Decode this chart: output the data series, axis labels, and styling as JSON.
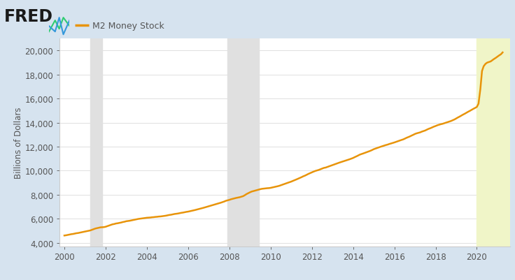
{
  "title": "M2 Money Stock",
  "ylabel": "Billions of Dollars",
  "line_color": "#e8940a",
  "background_color": "#d6e3ef",
  "plot_bg_color": "#ffffff",
  "recession_color": "#e0e0e0",
  "highlight_color": "#f0f5c8",
  "ylim": [
    3700,
    21000
  ],
  "yticks": [
    4000,
    6000,
    8000,
    10000,
    12000,
    14000,
    16000,
    18000,
    20000
  ],
  "xlim_start": 1999.75,
  "xlim_end": 2021.6,
  "xticks": [
    2000,
    2002,
    2004,
    2006,
    2008,
    2010,
    2012,
    2014,
    2016,
    2018,
    2020
  ],
  "recessions": [
    {
      "start": 2001.25,
      "end": 2001.83
    },
    {
      "start": 2007.92,
      "end": 2009.42
    }
  ],
  "highlight_start": 2020.0,
  "highlight_end": 2021.6,
  "fred_text": "FRED",
  "legend_label": "M2 Money Stock",
  "data": {
    "years": [
      2000.0,
      2000.08,
      2000.17,
      2000.25,
      2000.33,
      2000.42,
      2000.5,
      2000.58,
      2000.67,
      2000.75,
      2000.83,
      2000.92,
      2001.0,
      2001.08,
      2001.17,
      2001.25,
      2001.33,
      2001.42,
      2001.5,
      2001.58,
      2001.67,
      2001.75,
      2001.83,
      2001.92,
      2002.0,
      2002.08,
      2002.17,
      2002.25,
      2002.33,
      2002.42,
      2002.5,
      2002.58,
      2002.67,
      2002.75,
      2002.83,
      2002.92,
      2003.0,
      2003.08,
      2003.17,
      2003.25,
      2003.33,
      2003.42,
      2003.5,
      2003.58,
      2003.67,
      2003.75,
      2003.83,
      2003.92,
      2004.0,
      2004.08,
      2004.17,
      2004.25,
      2004.33,
      2004.42,
      2004.5,
      2004.58,
      2004.67,
      2004.75,
      2004.83,
      2004.92,
      2005.0,
      2005.08,
      2005.17,
      2005.25,
      2005.33,
      2005.42,
      2005.5,
      2005.58,
      2005.67,
      2005.75,
      2005.83,
      2005.92,
      2006.0,
      2006.08,
      2006.17,
      2006.25,
      2006.33,
      2006.42,
      2006.5,
      2006.58,
      2006.67,
      2006.75,
      2006.83,
      2006.92,
      2007.0,
      2007.08,
      2007.17,
      2007.25,
      2007.33,
      2007.42,
      2007.5,
      2007.58,
      2007.67,
      2007.75,
      2007.83,
      2007.92,
      2008.0,
      2008.08,
      2008.17,
      2008.25,
      2008.33,
      2008.42,
      2008.5,
      2008.58,
      2008.67,
      2008.75,
      2008.83,
      2008.92,
      2009.0,
      2009.08,
      2009.17,
      2009.25,
      2009.33,
      2009.42,
      2009.5,
      2009.58,
      2009.67,
      2009.75,
      2009.83,
      2009.92,
      2010.0,
      2010.08,
      2010.17,
      2010.25,
      2010.33,
      2010.42,
      2010.5,
      2010.58,
      2010.67,
      2010.75,
      2010.83,
      2010.92,
      2011.0,
      2011.08,
      2011.17,
      2011.25,
      2011.33,
      2011.42,
      2011.5,
      2011.58,
      2011.67,
      2011.75,
      2011.83,
      2011.92,
      2012.0,
      2012.08,
      2012.17,
      2012.25,
      2012.33,
      2012.42,
      2012.5,
      2012.58,
      2012.67,
      2012.75,
      2012.83,
      2012.92,
      2013.0,
      2013.08,
      2013.17,
      2013.25,
      2013.33,
      2013.42,
      2013.5,
      2013.58,
      2013.67,
      2013.75,
      2013.83,
      2013.92,
      2014.0,
      2014.08,
      2014.17,
      2014.25,
      2014.33,
      2014.42,
      2014.5,
      2014.58,
      2014.67,
      2014.75,
      2014.83,
      2014.92,
      2015.0,
      2015.08,
      2015.17,
      2015.25,
      2015.33,
      2015.42,
      2015.5,
      2015.58,
      2015.67,
      2015.75,
      2015.83,
      2015.92,
      2016.0,
      2016.08,
      2016.17,
      2016.25,
      2016.33,
      2016.42,
      2016.5,
      2016.58,
      2016.67,
      2016.75,
      2016.83,
      2016.92,
      2017.0,
      2017.08,
      2017.17,
      2017.25,
      2017.33,
      2017.42,
      2017.5,
      2017.58,
      2017.67,
      2017.75,
      2017.83,
      2017.92,
      2018.0,
      2018.08,
      2018.17,
      2018.25,
      2018.33,
      2018.42,
      2018.5,
      2018.58,
      2018.67,
      2018.75,
      2018.83,
      2018.92,
      2019.0,
      2019.08,
      2019.17,
      2019.25,
      2019.33,
      2019.42,
      2019.5,
      2019.58,
      2019.67,
      2019.75,
      2019.83,
      2019.92,
      2020.0,
      2020.08,
      2020.17,
      2020.25,
      2020.33,
      2020.42,
      2020.5,
      2020.58,
      2020.67,
      2020.75,
      2020.83,
      2020.92,
      2021.0,
      2021.08,
      2021.17,
      2021.25
    ],
    "values": [
      4600,
      4620,
      4650,
      4680,
      4710,
      4730,
      4760,
      4790,
      4810,
      4840,
      4870,
      4900,
      4930,
      4960,
      4990,
      5020,
      5070,
      5120,
      5180,
      5210,
      5250,
      5280,
      5290,
      5300,
      5330,
      5380,
      5430,
      5490,
      5530,
      5560,
      5600,
      5620,
      5650,
      5680,
      5720,
      5750,
      5790,
      5810,
      5830,
      5860,
      5890,
      5920,
      5950,
      5980,
      6000,
      6020,
      6040,
      6060,
      6080,
      6090,
      6100,
      6120,
      6130,
      6150,
      6160,
      6180,
      6190,
      6210,
      6230,
      6250,
      6280,
      6310,
      6330,
      6360,
      6390,
      6410,
      6430,
      6460,
      6490,
      6510,
      6540,
      6570,
      6590,
      6620,
      6650,
      6680,
      6720,
      6760,
      6800,
      6830,
      6870,
      6910,
      6950,
      6990,
      7030,
      7070,
      7120,
      7160,
      7200,
      7240,
      7280,
      7330,
      7380,
      7430,
      7490,
      7530,
      7570,
      7620,
      7660,
      7700,
      7730,
      7760,
      7790,
      7830,
      7880,
      7960,
      8050,
      8130,
      8200,
      8260,
      8300,
      8340,
      8380,
      8420,
      8460,
      8490,
      8510,
      8530,
      8540,
      8550,
      8570,
      8600,
      8630,
      8660,
      8700,
      8740,
      8790,
      8840,
      8890,
      8940,
      8990,
      9040,
      9090,
      9150,
      9210,
      9270,
      9330,
      9400,
      9460,
      9530,
      9590,
      9660,
      9730,
      9800,
      9860,
      9920,
      9980,
      10020,
      10060,
      10120,
      10180,
      10230,
      10260,
      10310,
      10360,
      10410,
      10460,
      10520,
      10570,
      10620,
      10670,
      10720,
      10770,
      10810,
      10860,
      10910,
      10950,
      11010,
      11060,
      11130,
      11200,
      11270,
      11340,
      11390,
      11440,
      11490,
      11550,
      11600,
      11650,
      11720,
      11790,
      11840,
      11890,
      11940,
      11990,
      12040,
      12080,
      12130,
      12170,
      12220,
      12260,
      12300,
      12350,
      12400,
      12450,
      12500,
      12550,
      12600,
      12660,
      12730,
      12790,
      12850,
      12920,
      12990,
      13060,
      13110,
      13150,
      13190,
      13250,
      13300,
      13350,
      13420,
      13490,
      13540,
      13600,
      13670,
      13720,
      13780,
      13830,
      13870,
      13900,
      13950,
      14000,
      14040,
      14090,
      14140,
      14200,
      14270,
      14350,
      14430,
      14510,
      14590,
      14670,
      14750,
      14830,
      14910,
      14990,
      15070,
      15150,
      15230,
      15310,
      15580,
      16800,
      18300,
      18700,
      18900,
      19000,
      19050,
      19100,
      19200,
      19300,
      19400,
      19500,
      19600,
      19700,
      19850
    ]
  }
}
